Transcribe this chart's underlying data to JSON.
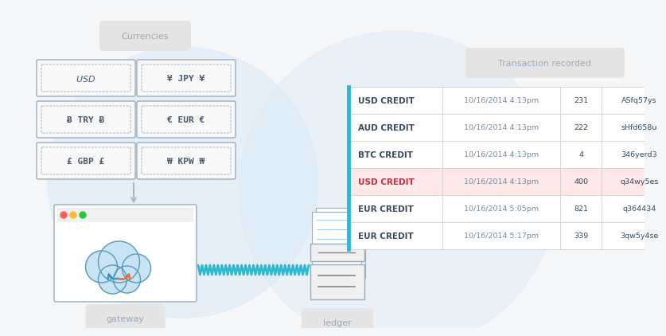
{
  "bg_color": "#f5f6f8",
  "currencies_label": "Currencies",
  "gateway_label": "gateway",
  "ledger_label": "ledger",
  "transaction_label": "Transaction recorded",
  "currencies": [
    [
      "$ USD $",
      "¥ JPY ¥"
    ],
    [
      "Ƀ TRY Ƀ",
      "€ EUR €"
    ],
    [
      "£ GBP £",
      "₩ KPW ₩"
    ]
  ],
  "table_rows": [
    {
      "type": "USD CREDIT",
      "date": "10/16/2014 4:13pm",
      "amount": "231",
      "id": "ASfq57ys",
      "highlight": false
    },
    {
      "type": "AUD CREDIT",
      "date": "10/16/2014 4:13pm",
      "amount": "222",
      "id": "sHfd658u",
      "highlight": false
    },
    {
      "type": "BTC CREDIT",
      "date": "10/16/2014 4:13pm",
      "amount": "4",
      "id": "346yerd3",
      "highlight": false
    },
    {
      "type": "USD CREDIT",
      "date": "10/16/2014 4:13pm",
      "amount": "400",
      "id": "q34wy5es",
      "highlight": true
    },
    {
      "type": "EUR CREDIT",
      "date": "10/16/2014 5:05pm",
      "amount": "821",
      "id": "q364434",
      "highlight": false
    },
    {
      "type": "EUR CREDIT",
      "date": "10/16/2014 5:17pm",
      "amount": "339",
      "id": "3qw5y4se",
      "highlight": false
    }
  ],
  "table_highlight_color": "#fce8e8",
  "table_border_color": "#d0d0d0",
  "table_text_color": "#3a4a5a",
  "table_highlight_text": "#c03040",
  "table_date_color": "#7a8a9a",
  "currency_box_color": "#f8f8f8",
  "currency_box_border": "#9aabba",
  "currency_text_color": "#4a5a6a",
  "arrow_color": "#b0b8c0",
  "wave_color": "#30b8d0",
  "circle_color": "#d8eaf6",
  "label_box_color": "#e4e4e4",
  "label_text_color": "#9aabba",
  "cloud_fill": "#c8e4f4",
  "cloud_border": "#5a9ab8",
  "arrow_down_color": "#3898b8",
  "arrow_orange_color": "#e07040"
}
